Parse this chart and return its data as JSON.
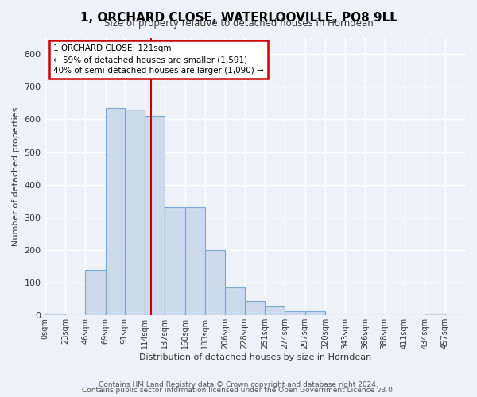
{
  "title": "1, ORCHARD CLOSE, WATERLOOVILLE, PO8 9LL",
  "subtitle": "Size of property relative to detached houses in Horndean",
  "xlabel": "Distribution of detached houses by size in Horndean",
  "ylabel": "Number of detached properties",
  "bar_color": "#ccdaeb",
  "bar_edge_color": "#7aa8cc",
  "bin_edges": [
    0,
    23,
    46,
    69,
    91,
    114,
    137,
    160,
    183,
    206,
    228,
    251,
    274,
    297,
    320,
    343,
    366,
    388,
    411,
    434,
    457,
    480
  ],
  "bar_heights": [
    5,
    0,
    140,
    635,
    630,
    610,
    330,
    330,
    200,
    85,
    45,
    28,
    12,
    12,
    0,
    0,
    0,
    0,
    0,
    5,
    0
  ],
  "x_tick_labels": [
    "0sqm",
    "23sqm",
    "46sqm",
    "69sqm",
    "91sqm",
    "114sqm",
    "137sqm",
    "160sqm",
    "183sqm",
    "206sqm",
    "228sqm",
    "251sqm",
    "274sqm",
    "297sqm",
    "320sqm",
    "343sqm",
    "366sqm",
    "388sqm",
    "411sqm",
    "434sqm",
    "457sqm"
  ],
  "vline_x": 121,
  "vline_color": "#cc0000",
  "ylim": [
    0,
    850
  ],
  "yticks": [
    0,
    100,
    200,
    300,
    400,
    500,
    600,
    700,
    800
  ],
  "annotation_line1": "1 ORCHARD CLOSE: 121sqm",
  "annotation_line2": "← 59% of detached houses are smaller (1,591)",
  "annotation_line3": "40% of semi-detached houses are larger (1,090) →",
  "annotation_box_color": "#ffffff",
  "annotation_box_edge": "#cc0000",
  "footer_line1": "Contains HM Land Registry data © Crown copyright and database right 2024.",
  "footer_line2": "Contains public sector information licensed under the Open Government Licence v3.0.",
  "background_color": "#eef2f8",
  "grid_color": "#ffffff"
}
